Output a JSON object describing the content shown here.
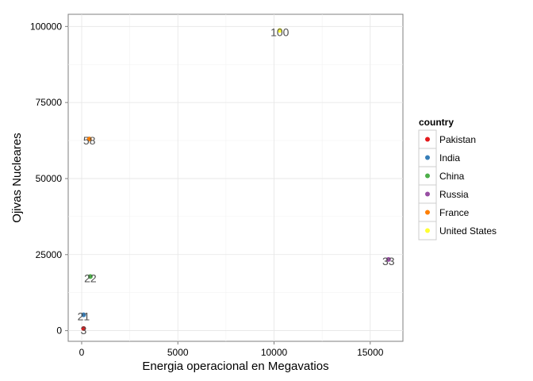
{
  "chart_data": {
    "type": "scatter",
    "xlabel": "Energia operacional en Megavatios",
    "ylabel": "Ojivas Nucleares",
    "xlim": [
      -700,
      16700
    ],
    "ylim": [
      -3500,
      104000
    ],
    "x_ticks": [
      0,
      5000,
      10000,
      15000
    ],
    "y_ticks": [
      0,
      25000,
      50000,
      75000,
      100000
    ],
    "x_tick_labels": [
      "0",
      "5000",
      "10000",
      "15000"
    ],
    "y_tick_labels": [
      "0",
      "25000",
      "50000",
      "75000",
      "100000"
    ],
    "grid": true,
    "legend": {
      "title": "country",
      "position": "right",
      "entries": [
        "Pakistan",
        "India",
        "China",
        "Russia",
        "France",
        "United States"
      ]
    },
    "series": [
      {
        "name": "Pakistan",
        "color": "#e41a1c",
        "x": 100,
        "y": 700,
        "label": "3"
      },
      {
        "name": "India",
        "color": "#377eb8",
        "x": 100,
        "y": 5200,
        "label": "21"
      },
      {
        "name": "China",
        "color": "#4daf4a",
        "x": 450,
        "y": 17800,
        "label": "22"
      },
      {
        "name": "Russia",
        "color": "#984ea3",
        "x": 15950,
        "y": 23400,
        "label": "33"
      },
      {
        "name": "France",
        "color": "#ff7f00",
        "x": 400,
        "y": 63000,
        "label": "58"
      },
      {
        "name": "United States",
        "color": "#ffff33",
        "x": 10300,
        "y": 98700,
        "label": "100"
      }
    ]
  }
}
